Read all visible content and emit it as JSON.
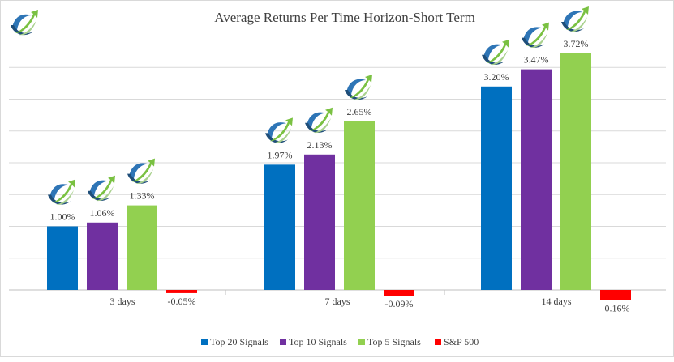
{
  "chart_data": {
    "type": "bar",
    "title": "Average Returns Per Time Horizon-Short Term",
    "xlabel": "",
    "ylabel": "",
    "categories": [
      "3 days",
      "7 days",
      "14 days"
    ],
    "series": [
      {
        "name": "Top 20 Signals",
        "color": "#0070c0",
        "values": [
          1.0,
          1.97,
          3.2
        ],
        "labels": [
          "1.00%",
          "1.97%",
          "3.20%"
        ],
        "logo": true
      },
      {
        "name": "Top 10 Signals",
        "color": "#7030a0",
        "values": [
          1.06,
          2.13,
          3.47
        ],
        "labels": [
          "1.06%",
          "2.13%",
          "3.47%"
        ],
        "logo": true
      },
      {
        "name": "Top 5 Signals",
        "color": "#92d050",
        "values": [
          1.33,
          2.65,
          3.72
        ],
        "labels": [
          "1.33%",
          "2.65%",
          "3.72%"
        ],
        "logo": true
      },
      {
        "name": "S&P 500",
        "color": "#ff0000",
        "values": [
          -0.05,
          -0.09,
          -0.16
        ],
        "labels": [
          "-0.05%",
          "-0.09%",
          "-0.16%"
        ],
        "logo": false
      }
    ],
    "ylim": [
      -0.5,
      4.0
    ],
    "grid": true,
    "legend": "bottom",
    "icon": "rising-arrow-swoosh-logo-icon"
  }
}
